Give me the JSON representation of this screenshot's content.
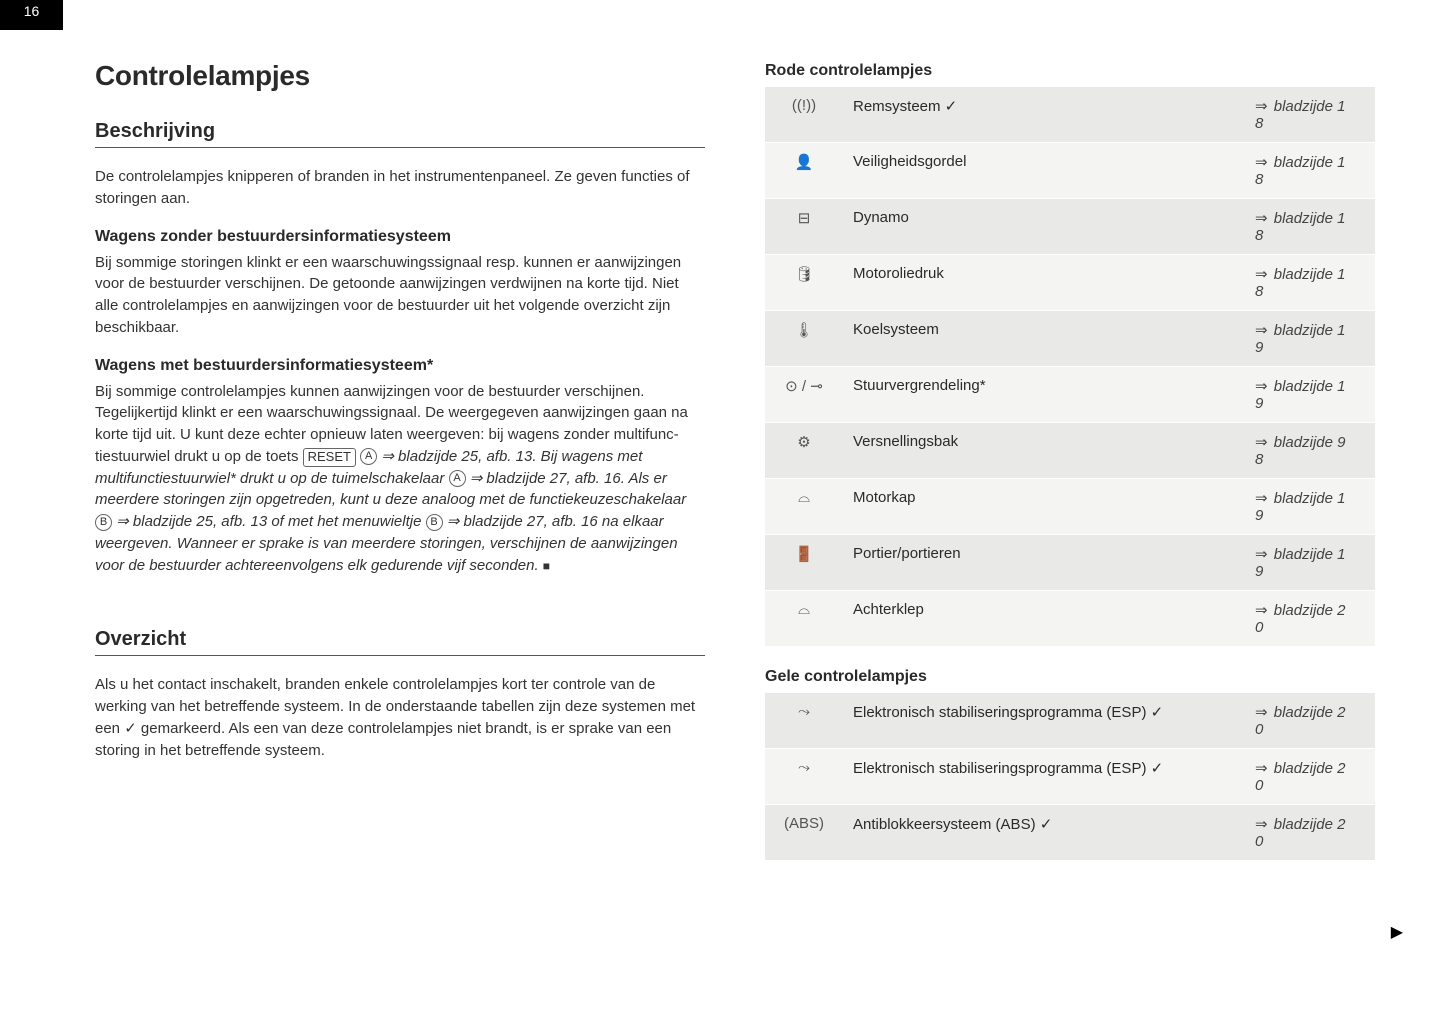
{
  "page_number": "16",
  "left": {
    "h1": "Controlelampjes",
    "h2a": "Beschrijving",
    "intro": "De controlelampjes knipperen of branden in het instrumentenpaneel. Ze geven functies of storingen aan.",
    "h3a": "Wagens zonder bestuurdersinformatiesysteem",
    "p_a": "Bij sommige storingen klinkt er een waarschuwingssignaal resp. kunnen er aanwijzingen voor de bestuurder verschijnen. De getoonde aanwijzingen verdwijnen na korte tijd. Niet alle controlelampjes en aanwijzingen voor de bestuurder uit het volgende overzicht zijn beschikbaar.",
    "h3b": "Wagens met bestuurdersinformatiesysteem*",
    "p_b1": "Bij sommige controlelampjes kunnen aanwijzingen voor de bestuurder verschijnen. Tegelijkertijd klinkt er een waarschuwings­signaal. De weergegeven aanwijzingen gaan na korte tijd uit. U kunt deze echter opnieuw laten weergeven: bij wagens zonder multifunc­tiestuurwiel drukt u op de toets ",
    "reset_label": "RESET",
    "circA": "A",
    "p_b2": " ⇒ bladzijde 25, afb. 13. Bij wagens met multifunctiestuurwiel* drukt u op de tuimelschake­laar ",
    "p_b3": " ⇒ bladzijde 27, afb. 16. Als er meerdere storingen zijn opge­treden, kunt u deze analoog met de functiekeuzeschakelaar ",
    "circB": "B",
    "p_b4": " ⇒ bladzijde 25, afb. 13 of met het menuwieltje ",
    "p_b5": " ⇒ bladzijde 27, afb. 16 na elkaar weergeven. Wanneer er sprake is van meerdere storingen, verschijnen de aanwijzingen voor de bestuurder achter­eenvolgens elk gedurende vijf seconden. ",
    "endmark": "■",
    "h2b": "Overzicht",
    "p_overzicht": "Als u het contact inschakelt, branden enkele controlelampjes kort ter controle van de werking van het betreffende systeem. In de onder­staande tabellen zijn deze systemen met een ✓ gemarkeerd. Als een van deze controlelampjes niet brandt, is er sprake van een storing in het betreffende systeem."
  },
  "right": {
    "sub_red": "Rode controlelampjes",
    "sub_yellow": "Gele controlelampjes",
    "red_rows": [
      {
        "icon": "((!))",
        "label": "Remsysteem ✓",
        "page": "⇒ bladzijde 18"
      },
      {
        "icon": "👤",
        "label": "Veiligheidsgordel",
        "page": "⇒ bladzijde 18"
      },
      {
        "icon": "⊟",
        "label": "Dynamo",
        "page": "⇒ bladzijde 18"
      },
      {
        "icon": "🛢",
        "label": "Motoroliedruk",
        "page": "⇒ bladzijde 18"
      },
      {
        "icon": "🌡",
        "label": "Koelsysteem",
        "page": "⇒ bladzijde 19"
      },
      {
        "icon": "⊙ / ⊸",
        "label": "Stuurvergrendeling*",
        "page": "⇒ bladzijde 19"
      },
      {
        "icon": "⚙",
        "label": "Versnellingsbak",
        "page": "⇒ bladzijde 98"
      },
      {
        "icon": "⌓",
        "label": "Motorkap",
        "page": "⇒ bladzijde 19"
      },
      {
        "icon": "🚪",
        "label": "Portier/portieren",
        "page": "⇒ bladzijde 19"
      },
      {
        "icon": "⌓",
        "label": "Achterklep",
        "page": "⇒ bladzijde 20"
      }
    ],
    "yellow_rows": [
      {
        "icon": "⤳",
        "label": "Elektronisch stabiliseringsprogramma (ESP) ✓",
        "page": "⇒ bladzijde 20"
      },
      {
        "icon": "⤳",
        "label": "Elektronisch stabiliseringsprogramma (ESP) ✓",
        "page": "⇒ bladzijde 20"
      },
      {
        "icon": "(ABS)",
        "label": "Antiblokkeersysteem (ABS) ✓",
        "page": "⇒ bladzijde 20"
      }
    ]
  },
  "colors": {
    "row_odd": "#e9e9e7",
    "row_even": "#f4f4f2",
    "text": "#2a2a2a"
  }
}
